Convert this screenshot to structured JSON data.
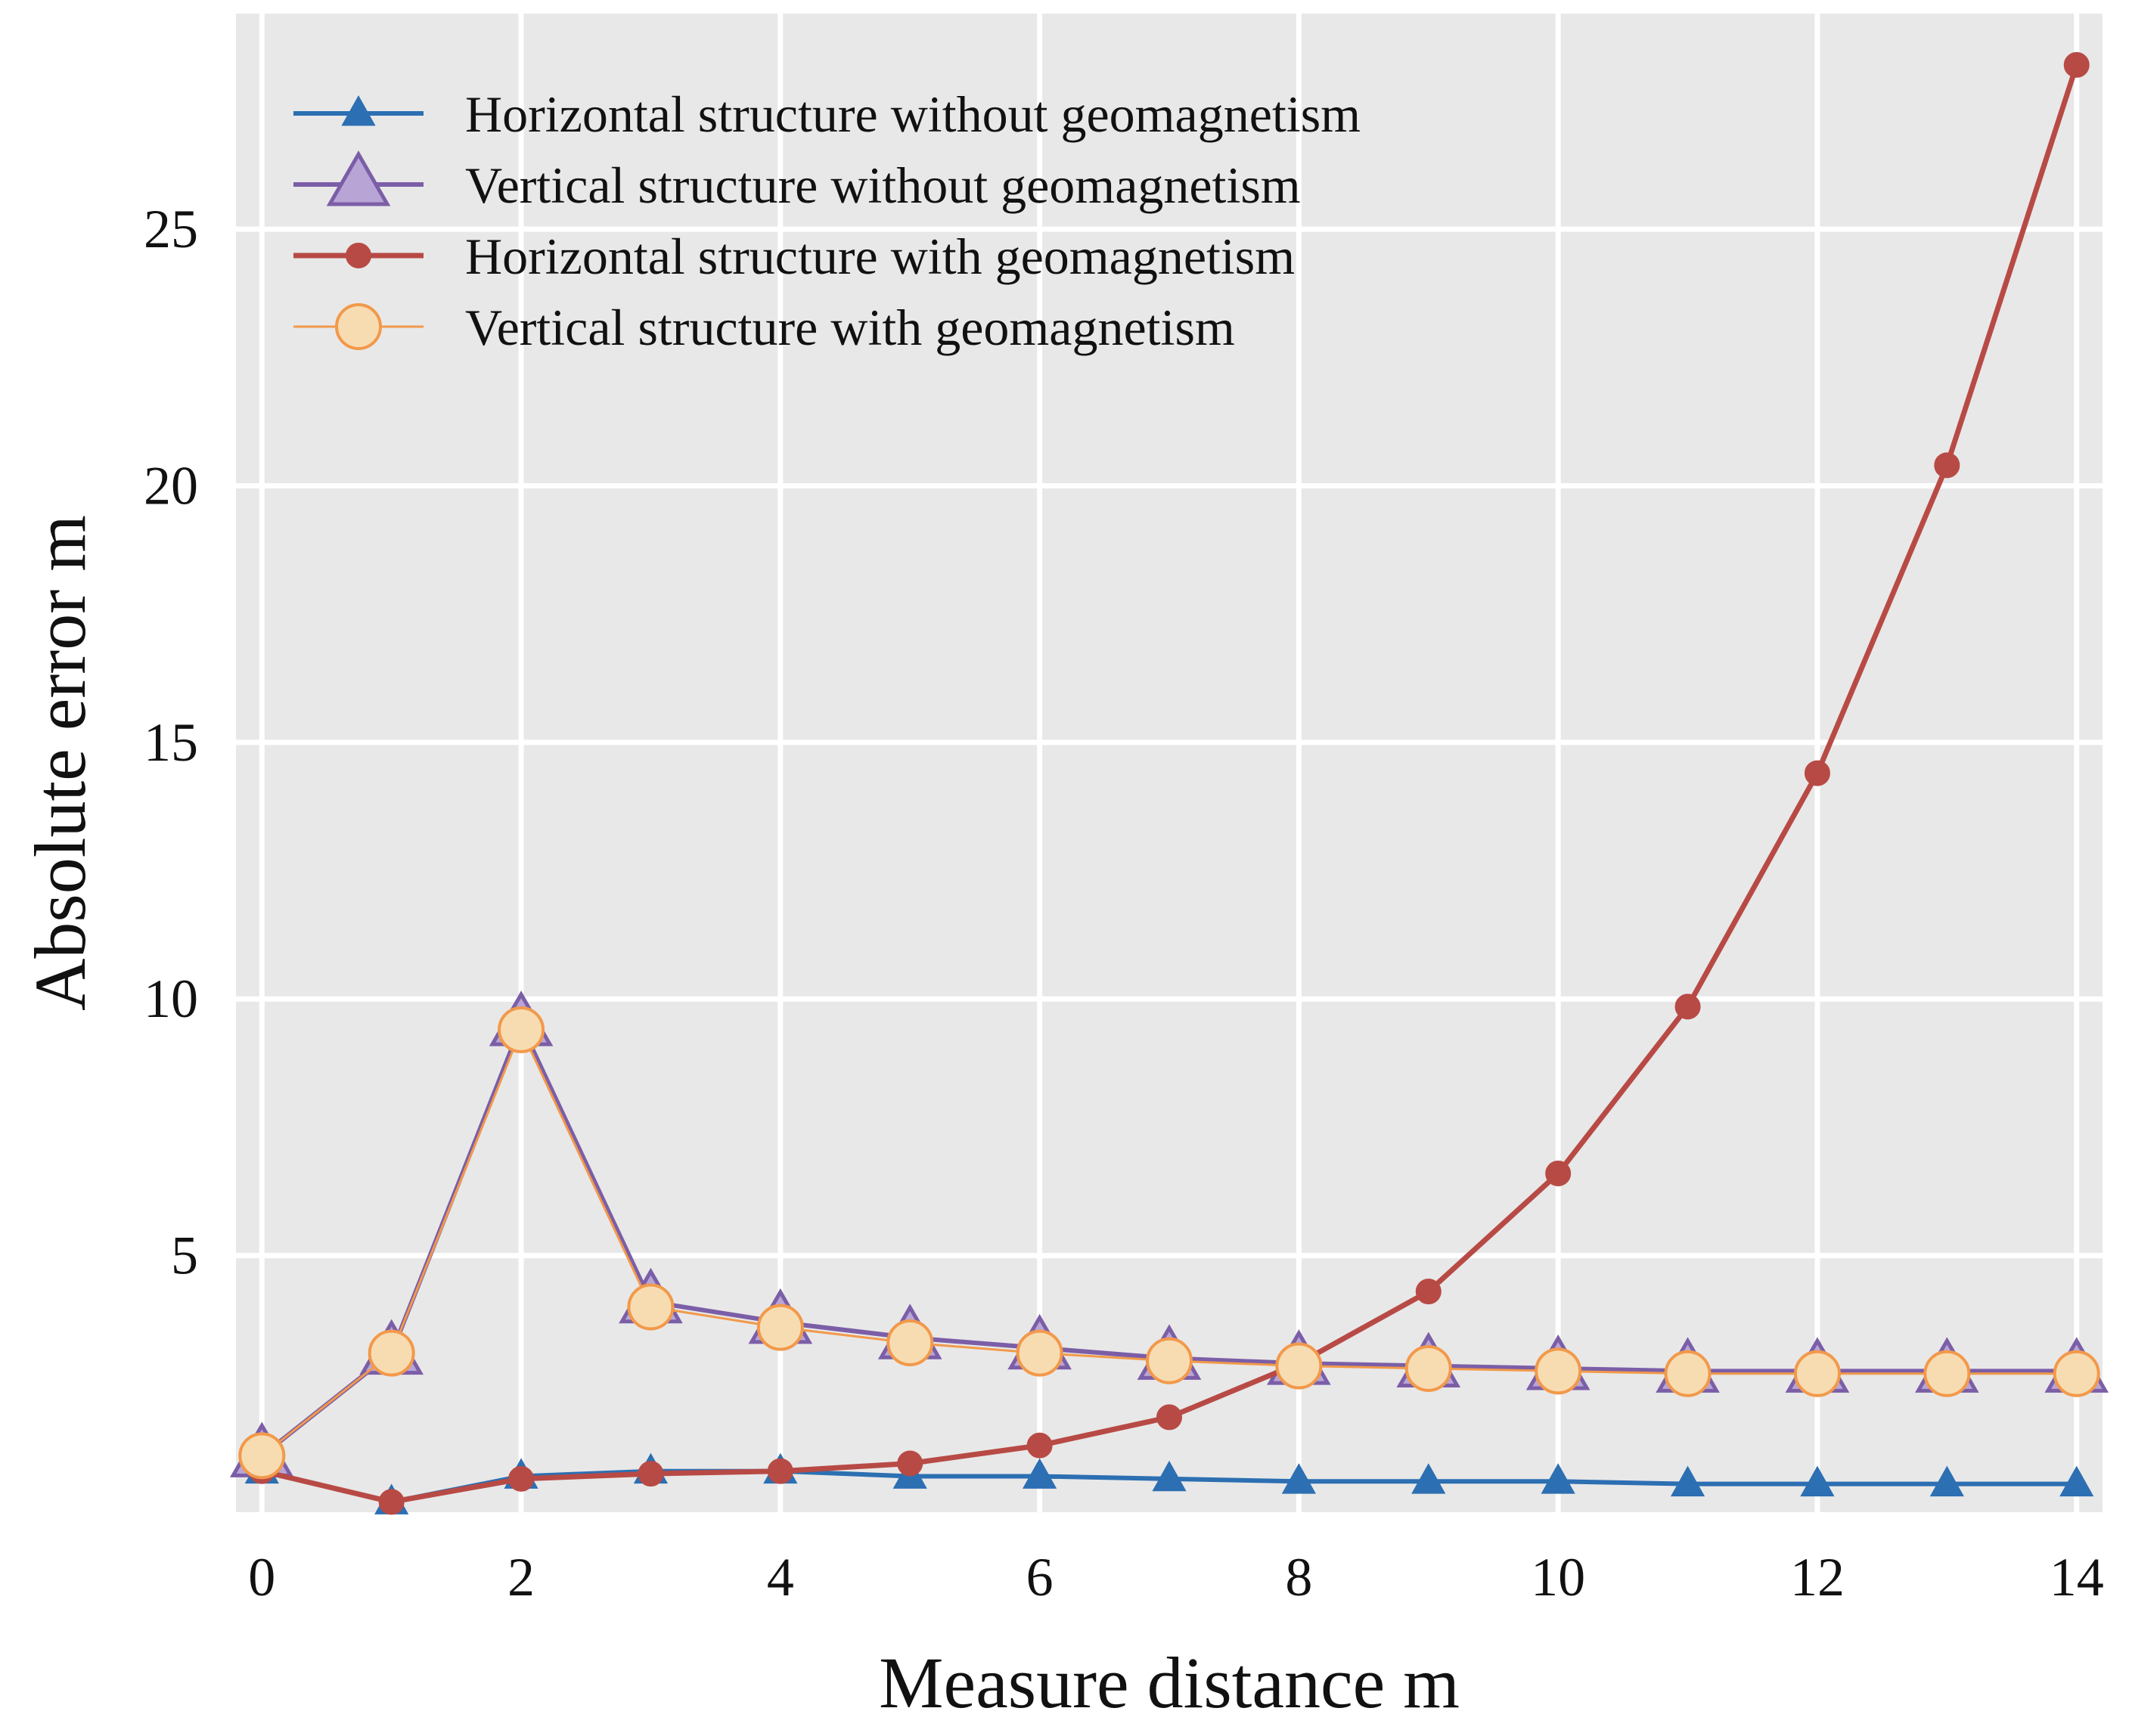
{
  "chart_data": {
    "type": "line",
    "title": "",
    "xlabel": "Measure distance  m",
    "ylabel": "Absolute error  m",
    "xlim": [
      -0.2,
      14.2
    ],
    "ylim": [
      0.0,
      29.2
    ],
    "xticks": [
      0,
      2,
      4,
      6,
      8,
      10,
      12,
      14
    ],
    "yticks": [
      5,
      10,
      15,
      20,
      25
    ],
    "grid": true,
    "legend_position": "top-left",
    "background": "#e8e8e8",
    "x": [
      0,
      1,
      2,
      3,
      4,
      5,
      6,
      7,
      8,
      9,
      10,
      11,
      12,
      13,
      14
    ],
    "series": [
      {
        "name": "Horizontal structure without geomagnetism",
        "color": "#2c6fb2",
        "marker": "triangle-small",
        "values": [
          0.8,
          0.2,
          0.7,
          0.8,
          0.8,
          0.7,
          0.7,
          0.65,
          0.6,
          0.6,
          0.6,
          0.55,
          0.55,
          0.55,
          0.55
        ]
      },
      {
        "name": "Vertical structure without geomagnetism",
        "color": "#7b5ea7",
        "fill": "#b8a5d6",
        "marker": "triangle-large",
        "values": [
          1.1,
          3.1,
          9.5,
          4.1,
          3.7,
          3.4,
          3.2,
          3.0,
          2.9,
          2.85,
          2.8,
          2.75,
          2.75,
          2.75,
          2.75
        ]
      },
      {
        "name": "Horizontal structure with geomagnetism",
        "color": "#b84a45",
        "marker": "circle-small",
        "values": [
          0.8,
          0.2,
          0.65,
          0.75,
          0.8,
          0.95,
          1.3,
          1.85,
          2.9,
          4.3,
          6.6,
          9.85,
          14.4,
          20.4,
          28.2
        ]
      },
      {
        "name": "Vertical structure with geomagnetism",
        "color": "#f2994a",
        "fill": "#f7dcb2",
        "marker": "circle-large",
        "values": [
          1.1,
          3.1,
          9.4,
          4.0,
          3.6,
          3.3,
          3.1,
          2.95,
          2.85,
          2.8,
          2.75,
          2.7,
          2.7,
          2.7,
          2.7
        ]
      }
    ]
  }
}
